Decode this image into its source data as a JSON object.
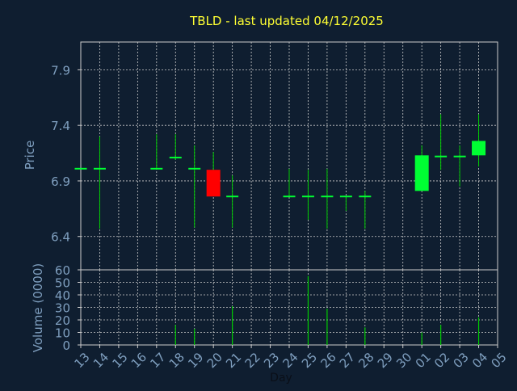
{
  "chart_data": {
    "type": "candlestick",
    "title": "TBLD - last updated 04/12/2025",
    "xlabel": "Day",
    "x_ticks": [
      "13",
      "14",
      "15",
      "16",
      "17",
      "18",
      "19",
      "20",
      "21",
      "22",
      "23",
      "24",
      "25",
      "26",
      "27",
      "28",
      "29",
      "30",
      "01",
      "02",
      "03",
      "04",
      "05"
    ],
    "price_panel": {
      "ylabel": "Price",
      "ylim": [
        6.1,
        8.15
      ],
      "yticks": [
        6.4,
        6.9,
        7.4,
        7.9
      ],
      "candles": [
        {
          "day": "13",
          "open": 7.01,
          "high": 7.01,
          "low": 7.01,
          "close": 7.01
        },
        {
          "day": "14",
          "open": 7.01,
          "high": 7.3,
          "low": 6.47,
          "close": 7.01
        },
        {
          "day": "17",
          "open": 7.01,
          "high": 7.32,
          "low": 7.01,
          "close": 7.01
        },
        {
          "day": "18",
          "open": 7.11,
          "high": 7.32,
          "low": 7.09,
          "close": 7.11
        },
        {
          "day": "19",
          "open": 7.01,
          "high": 7.22,
          "low": 6.48,
          "close": 7.01
        },
        {
          "day": "20",
          "open": 7.0,
          "high": 7.16,
          "low": 6.77,
          "close": 6.76
        },
        {
          "day": "21",
          "open": 6.76,
          "high": 6.95,
          "low": 6.48,
          "close": 6.76
        },
        {
          "day": "24",
          "open": 6.76,
          "high": 7.01,
          "low": 6.76,
          "close": 6.76
        },
        {
          "day": "25",
          "open": 6.76,
          "high": 7.0,
          "low": 6.55,
          "close": 6.76
        },
        {
          "day": "26",
          "open": 6.76,
          "high": 7.01,
          "low": 6.47,
          "close": 6.76
        },
        {
          "day": "27",
          "open": 6.76,
          "high": 6.76,
          "low": 6.63,
          "close": 6.76
        },
        {
          "day": "28",
          "open": 6.76,
          "high": 6.81,
          "low": 6.47,
          "close": 6.76
        },
        {
          "day": "01",
          "open": 6.81,
          "high": 7.22,
          "low": 6.81,
          "close": 7.13
        },
        {
          "day": "02",
          "open": 7.12,
          "high": 7.5,
          "low": 7.0,
          "close": 7.12
        },
        {
          "day": "03",
          "open": 7.12,
          "high": 7.22,
          "low": 6.85,
          "close": 7.12
        },
        {
          "day": "04",
          "open": 7.13,
          "high": 7.5,
          "low": 7.03,
          "close": 7.26
        }
      ]
    },
    "volume_panel": {
      "ylabel": "Volume (0000)",
      "ylim": [
        0,
        60
      ],
      "yticks": [
        0,
        10,
        20,
        30,
        40,
        50,
        60
      ],
      "bars": [
        {
          "day": "18",
          "value": 16
        },
        {
          "day": "19",
          "value": 13
        },
        {
          "day": "21",
          "value": 31
        },
        {
          "day": "25",
          "value": 55
        },
        {
          "day": "26",
          "value": 29
        },
        {
          "day": "28",
          "value": 14
        },
        {
          "day": "01",
          "value": 10
        },
        {
          "day": "02",
          "value": 16
        },
        {
          "day": "04",
          "value": 22
        }
      ]
    },
    "colors": {
      "background": "#0f1e30",
      "title": "#ffff33",
      "axis_text": "#7f9fbf",
      "grid": "#cccccc",
      "up": "#00ff33",
      "down": "#ff0000",
      "wick": "#00cc00"
    },
    "grid": true
  }
}
